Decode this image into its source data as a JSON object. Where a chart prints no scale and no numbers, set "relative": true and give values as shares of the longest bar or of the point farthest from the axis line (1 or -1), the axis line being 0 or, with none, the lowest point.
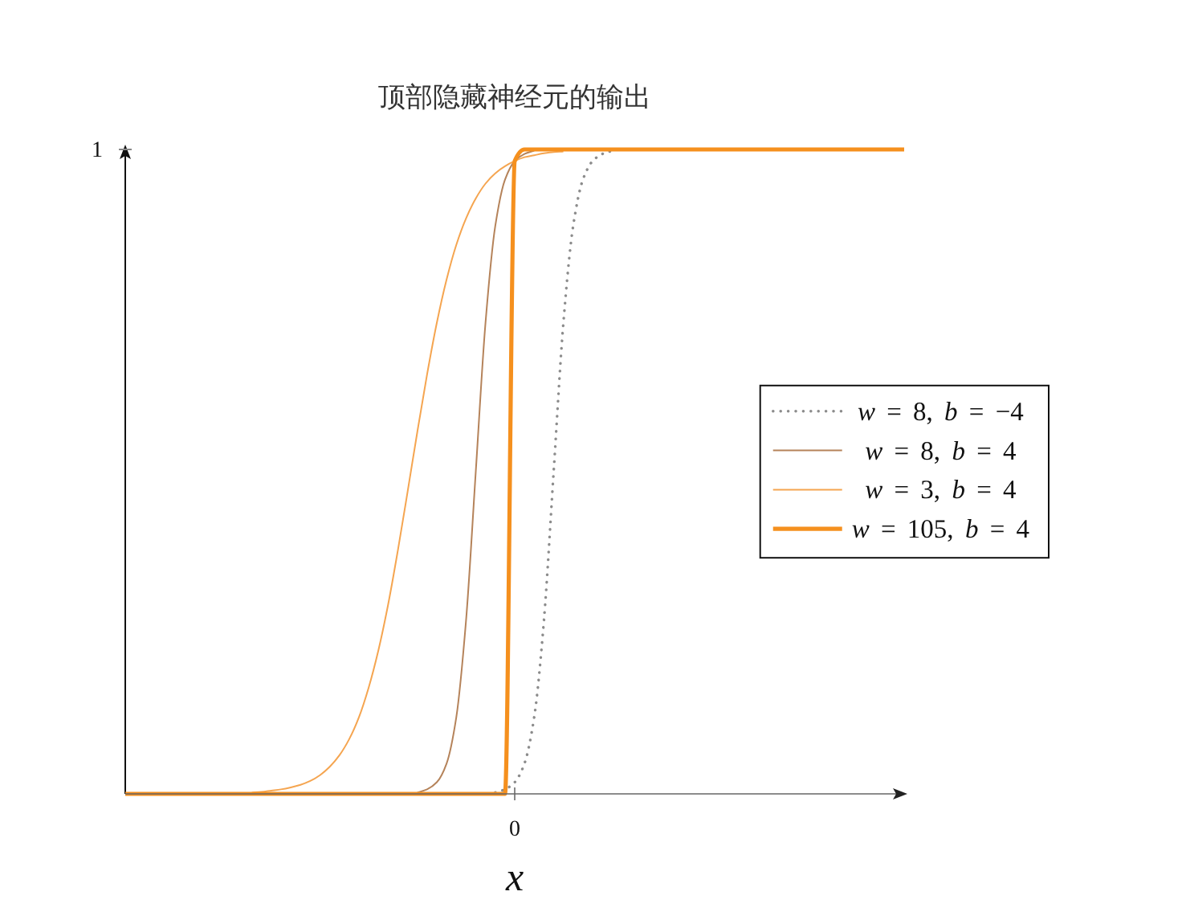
{
  "chart_data": {
    "type": "line",
    "title": "顶部隐藏神经元的输出",
    "xlabel": "x",
    "relative": true,
    "legend": "right",
    "categories": [
      null,
      null,
      null,
      null,
      null,
      null,
      null,
      null,
      null,
      null,
      null,
      null,
      null,
      null,
      null,
      null,
      null,
      null,
      null,
      null,
      null,
      null,
      null,
      null,
      null,
      null,
      null,
      null,
      null,
      null,
      null,
      null,
      null,
      null,
      null,
      null,
      null,
      null,
      null,
      null,
      null,
      null,
      null,
      null,
      null,
      null,
      null,
      null,
      null,
      null,
      null,
      null,
      null,
      null,
      null,
      null,
      null,
      null,
      null,
      null,
      null,
      null,
      null,
      null,
      null,
      null,
      null,
      null,
      null,
      null,
      null,
      null,
      null,
      null,
      null,
      null,
      null,
      null,
      null,
      null,
      null
    ],
    "series": [
      {
        "name": "w = 8, b = −4",
        "color": "#8c8c8c",
        "line_style": "dotted",
        "values": [
          null,
          null,
          null,
          null,
          null,
          null,
          null,
          null,
          null,
          null,
          null,
          null,
          null,
          null,
          null,
          null,
          null,
          null,
          null,
          null,
          null,
          null,
          null,
          null,
          null,
          null,
          null,
          null,
          null,
          null,
          null,
          null,
          null,
          null,
          null,
          null,
          null,
          null,
          0.002,
          0.007,
          0.018,
          0.047,
          0.119,
          0.269,
          0.5,
          0.731,
          0.881,
          0.953,
          0.982,
          0.993,
          0.998,
          null,
          null,
          null,
          null,
          null,
          null,
          null,
          null,
          null,
          null,
          null,
          null,
          null,
          null,
          null,
          null,
          null,
          null,
          null,
          null,
          null,
          null,
          null,
          null,
          null,
          null,
          null,
          null,
          null,
          null
        ]
      },
      {
        "name": "w = 8, b = 4",
        "color": "#b5835a",
        "line_style": "solid",
        "values": [
          null,
          null,
          null,
          null,
          null,
          null,
          null,
          null,
          null,
          null,
          null,
          null,
          null,
          null,
          null,
          null,
          null,
          null,
          null,
          null,
          null,
          null,
          null,
          null,
          null,
          null,
          null,
          null,
          null,
          null,
          0.002,
          0.007,
          0.018,
          0.047,
          0.119,
          0.269,
          0.5,
          0.731,
          0.881,
          0.953,
          0.982,
          0.993,
          0.998,
          null,
          null,
          null,
          null,
          null,
          null,
          null,
          null,
          null,
          null,
          null,
          null,
          null,
          null,
          null,
          null,
          null,
          null,
          null,
          null,
          null,
          null,
          null,
          null,
          null,
          null,
          null,
          null,
          null,
          null,
          null,
          null,
          null,
          null,
          null,
          null,
          null,
          null
        ]
      },
      {
        "name": "w = 3, b = 4",
        "color": "#f5a550",
        "line_style": "solid",
        "values": [
          null,
          null,
          null,
          null,
          null,
          null,
          null,
          null,
          null,
          null,
          null,
          null,
          null,
          0.002,
          0.003,
          0.005,
          0.007,
          0.01,
          0.014,
          0.02,
          0.029,
          0.042,
          0.06,
          0.085,
          0.119,
          0.165,
          0.223,
          0.294,
          0.378,
          0.469,
          0.562,
          0.651,
          0.731,
          0.798,
          0.852,
          0.893,
          0.924,
          0.947,
          0.963,
          0.974,
          0.982,
          0.988,
          0.991,
          0.994,
          0.996,
          0.997,
          null,
          null,
          null,
          null,
          null,
          null,
          null,
          null,
          null,
          null,
          null,
          null,
          null,
          null,
          null,
          null,
          null,
          null,
          null,
          null,
          null,
          null,
          null,
          null,
          null,
          null,
          null,
          null,
          null,
          null,
          null,
          null,
          null,
          null,
          null
        ]
      },
      {
        "name": "w = 105, b = 4",
        "color": "#f5901e",
        "line_style": "solid",
        "values": [
          0,
          0,
          0,
          0,
          0,
          0,
          0,
          0,
          0,
          0,
          0,
          0,
          0,
          0,
          0,
          0,
          0,
          0,
          0,
          0,
          0,
          0,
          0,
          0,
          0,
          0,
          0,
          0,
          0,
          0,
          0,
          0,
          0,
          0,
          0,
          0,
          0,
          0,
          0,
          0,
          0.982,
          1,
          1,
          1,
          1,
          1,
          1,
          1,
          1,
          1,
          1,
          1,
          1,
          1,
          1,
          1,
          1,
          1,
          1,
          1,
          1,
          1,
          1,
          1,
          1,
          1,
          1,
          1,
          1,
          1,
          1,
          1,
          1,
          1,
          1,
          1,
          1,
          1,
          1,
          1,
          1
        ]
      }
    ],
    "annotations": [
      "1",
      "0"
    ]
  }
}
